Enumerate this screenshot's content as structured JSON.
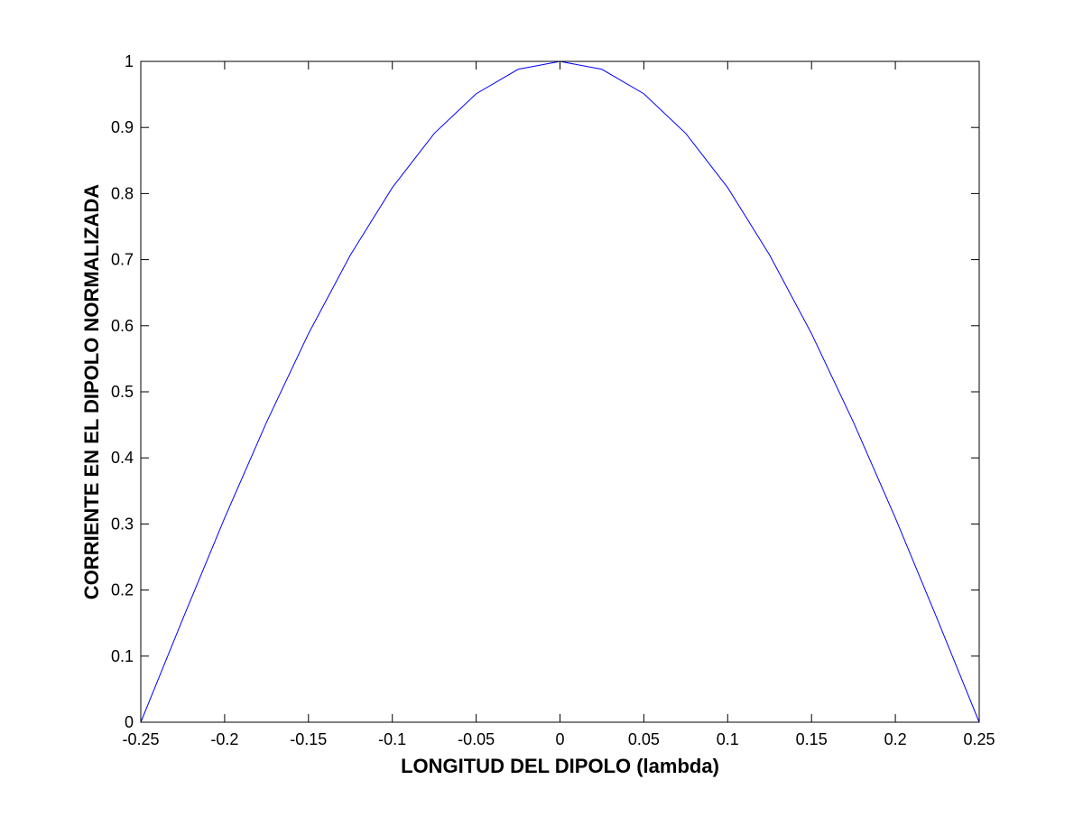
{
  "chart_data": {
    "type": "line",
    "title": "",
    "xlabel": "LONGITUD DEL DIPOLO (lambda)",
    "ylabel": "CORRIENTE EN EL DIPOLO NORMALIZADA",
    "xlim": [
      -0.25,
      0.25
    ],
    "ylim": [
      0,
      1
    ],
    "xticks": [
      -0.25,
      -0.2,
      -0.15,
      -0.1,
      -0.05,
      0,
      0.05,
      0.1,
      0.15,
      0.2,
      0.25
    ],
    "xtick_labels": [
      "-0.25",
      "-0.2",
      "-0.15",
      "-0.1",
      "-0.05",
      "0",
      "0.05",
      "0.1",
      "0.15",
      "0.2",
      "0.25"
    ],
    "yticks": [
      0,
      0.1,
      0.2,
      0.3,
      0.4,
      0.5,
      0.6,
      0.7,
      0.8,
      0.9,
      1
    ],
    "ytick_labels": [
      "0",
      "0.1",
      "0.2",
      "0.3",
      "0.4",
      "0.5",
      "0.6",
      "0.7",
      "0.8",
      "0.9",
      "1"
    ],
    "grid": false,
    "series": [
      {
        "color": "#0000ff",
        "x": [
          -0.25,
          -0.225,
          -0.2,
          -0.175,
          -0.15,
          -0.125,
          -0.1,
          -0.075,
          -0.05,
          -0.025,
          0,
          0.025,
          0.05,
          0.075,
          0.1,
          0.125,
          0.15,
          0.175,
          0.2,
          0.225,
          0.25
        ],
        "y": [
          0,
          0.156,
          0.309,
          0.454,
          0.588,
          0.707,
          0.809,
          0.891,
          0.951,
          0.988,
          1,
          0.988,
          0.951,
          0.891,
          0.809,
          0.707,
          0.588,
          0.454,
          0.309,
          0.156,
          0
        ]
      }
    ]
  }
}
